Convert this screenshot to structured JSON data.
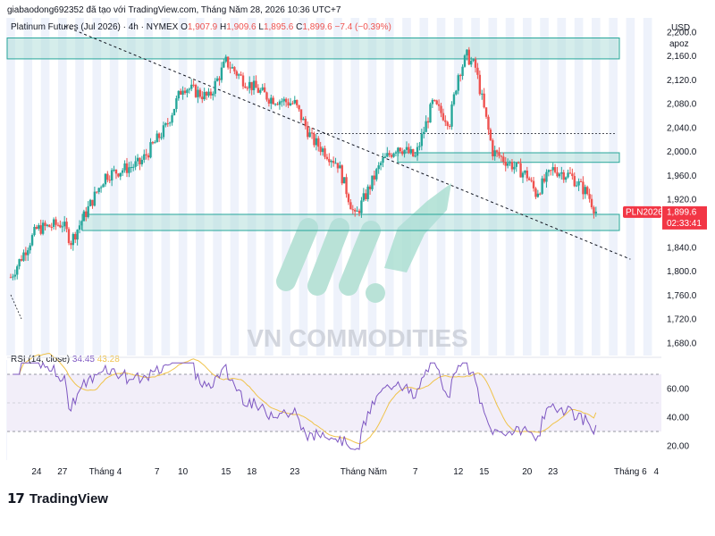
{
  "header": {
    "creator_line": "giabaodong692352 đã tạo với TradingView.com, Tháng Năm 28, 2026 10:36 UTC+7"
  },
  "legend": {
    "symbol_line": "Platinum Futures (Jul 2026) · 4h · NYMEX",
    "open_label": "O",
    "open_value": "1,907.9",
    "high_label": "H",
    "high_value": "1,909.6",
    "low_label": "L",
    "low_value": "1,895.6",
    "close_label": "C",
    "close_value": "1,899.6",
    "change": "−7.4 (−0.39%)"
  },
  "axis": {
    "currency": "USD",
    "scale_mode": "apoz",
    "price_ticks": [
      "2,200.0",
      "2,160.0",
      "2,120.0",
      "2,080.0",
      "2,040.0",
      "2,000.0",
      "1,960.0",
      "1,920.0",
      "1,880.0",
      "1,840.0",
      "1,800.0",
      "1,760.0",
      "1,720.0",
      "1,680.0"
    ],
    "price_tick_values": [
      2200,
      2160,
      2120,
      2080,
      2040,
      2000,
      1960,
      1920,
      1880,
      1840,
      1800,
      1760,
      1720,
      1680
    ],
    "price_label_tag": "PLN2026",
    "price_label_value": "1,899.6",
    "price_label_countdown": "02:33:41",
    "rsi_ticks": [
      "60.00",
      "40.00",
      "20.00"
    ],
    "rsi_tick_values": [
      60,
      40,
      20
    ],
    "time_ticks": [
      "24",
      "27",
      "Tháng 4",
      "7",
      "10",
      "15",
      "18",
      "23",
      "Tháng Năm",
      "7",
      "12",
      "15",
      "20",
      "23",
      "Tháng 6",
      "4"
    ]
  },
  "rsi": {
    "title": "RSI (14, close)",
    "value": "34.45",
    "ma_value": "43.28"
  },
  "watermark": "VN COMMODITIES",
  "brand": {
    "logo_glyph": "17",
    "name": "TradingView"
  },
  "colors": {
    "up": "#26a69a",
    "down": "#ef5350",
    "zone_fill": "#b2dfdb",
    "zone_stroke": "#26a69a",
    "rsi_line": "#7e57c2",
    "rsi_ma": "#f0c34a",
    "rsi_band": "#ede7f6"
  },
  "chart_data": {
    "type": "candlestick",
    "symbol": "Platinum Futures (Jul 2026)",
    "timeframe": "4h",
    "price_range": [
      1680,
      2220
    ],
    "approx_path": [
      {
        "x": "Mar 21",
        "price": 1790
      },
      {
        "x": "Mar 24",
        "price": 1870
      },
      {
        "x": "Mar 27",
        "price": 1880
      },
      {
        "x": "Mar 28",
        "price": 1850
      },
      {
        "x": "Apr 1",
        "price": 1960
      },
      {
        "x": "Apr 5",
        "price": 1980
      },
      {
        "x": "Apr 8",
        "price": 2040
      },
      {
        "x": "Apr 10",
        "price": 2110
      },
      {
        "x": "Apr 13",
        "price": 2090
      },
      {
        "x": "Apr 15",
        "price": 2150
      },
      {
        "x": "Apr 17",
        "price": 2120
      },
      {
        "x": "Apr 20",
        "price": 2090
      },
      {
        "x": "Apr 23",
        "price": 2080
      },
      {
        "x": "Apr 25",
        "price": 2020
      },
      {
        "x": "Apr 28",
        "price": 1980
      },
      {
        "x": "Apr 30",
        "price": 1890
      },
      {
        "x": "May 3",
        "price": 1980
      },
      {
        "x": "May 5",
        "price": 2010
      },
      {
        "x": "May 7",
        "price": 1990
      },
      {
        "x": "May 9",
        "price": 2080
      },
      {
        "x": "May 11",
        "price": 2050
      },
      {
        "x": "May 12",
        "price": 2130
      },
      {
        "x": "May 13",
        "price": 2160
      },
      {
        "x": "May 14",
        "price": 2140
      },
      {
        "x": "May 16",
        "price": 2000
      },
      {
        "x": "May 18",
        "price": 1980
      },
      {
        "x": "May 20",
        "price": 1960
      },
      {
        "x": "May 21",
        "price": 1930
      },
      {
        "x": "May 23",
        "price": 1970
      },
      {
        "x": "May 25",
        "price": 1960
      },
      {
        "x": "May 27",
        "price": 1930
      },
      {
        "x": "May 28",
        "price": 1899.6
      }
    ],
    "zones": [
      {
        "low": 2155,
        "high": 2190
      },
      {
        "low": 1982,
        "high": 1998
      },
      {
        "low": 1868,
        "high": 1895
      }
    ],
    "levels": [
      2030
    ],
    "trendline": [
      {
        "x": "Mar 21",
        "price": 2210
      },
      {
        "x": "Jun 1",
        "price": 1820
      }
    ],
    "rsi_series": {
      "name": "RSI (14, close)",
      "range": [
        10,
        80
      ],
      "upper_band": 70,
      "lower_band": 30,
      "last": 34.45,
      "ma_last": 43.28
    }
  }
}
